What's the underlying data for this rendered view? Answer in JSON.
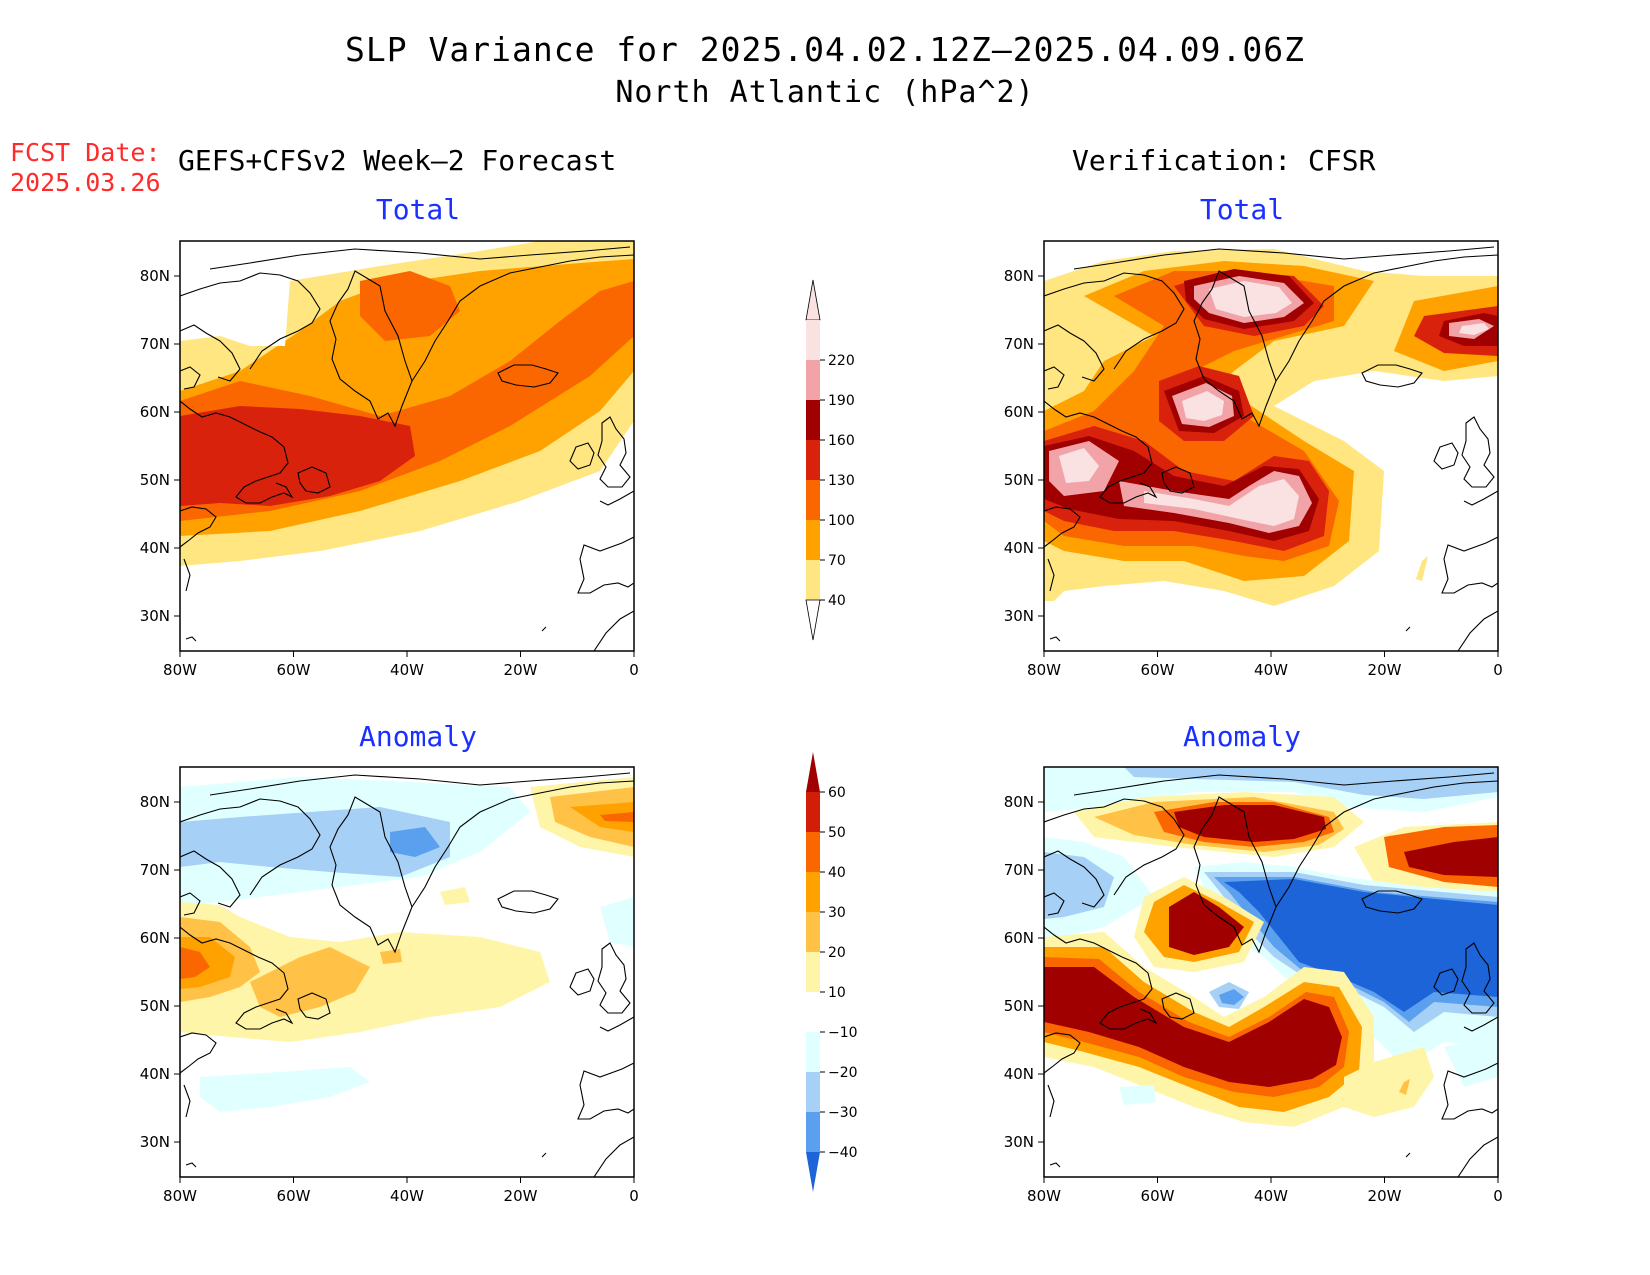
{
  "header": {
    "title_line1": "SLP Variance for 2025.04.02.12Z–2025.04.09.06Z",
    "title_line2": "North Atlantic (hPa^2)",
    "fcst_label": "FCST Date:",
    "fcst_date": "2025.03.26",
    "left_column": "GEFS+CFSv2 Week–2 Forecast",
    "right_column": "Verification: CFSR"
  },
  "panels": {
    "forecast_total": {
      "title": "Total"
    },
    "verification_total": {
      "title": "Total"
    },
    "forecast_anomaly": {
      "title": "Anomaly"
    },
    "verification_anomaly": {
      "title": "Anomaly"
    }
  },
  "axes": {
    "lat_labels": [
      "80N",
      "70N",
      "60N",
      "50N",
      "40N",
      "30N"
    ],
    "lon_labels": [
      "80W",
      "60W",
      "40W",
      "20W",
      "0"
    ]
  },
  "colorbars": {
    "total": {
      "levels": [
        "220",
        "190",
        "160",
        "130",
        "100",
        "70",
        "40"
      ],
      "colors": [
        "#fbe2e2",
        "#f2a3a8",
        "#a00000",
        "#d8220c",
        "#fa6600",
        "#ffa200",
        "#ffe680"
      ]
    },
    "anomaly": {
      "levels": [
        "60",
        "50",
        "40",
        "30",
        "20",
        "10",
        "−10",
        "−20",
        "−30",
        "−40"
      ],
      "colors": [
        "#a00000",
        "#d01e08",
        "#fa6600",
        "#ffa200",
        "#ffc247",
        "#fff5a8",
        "#ffffff",
        "#e0ffff",
        "#a6d0f5",
        "#5aa0ef",
        "#1c64d8"
      ]
    }
  }
}
